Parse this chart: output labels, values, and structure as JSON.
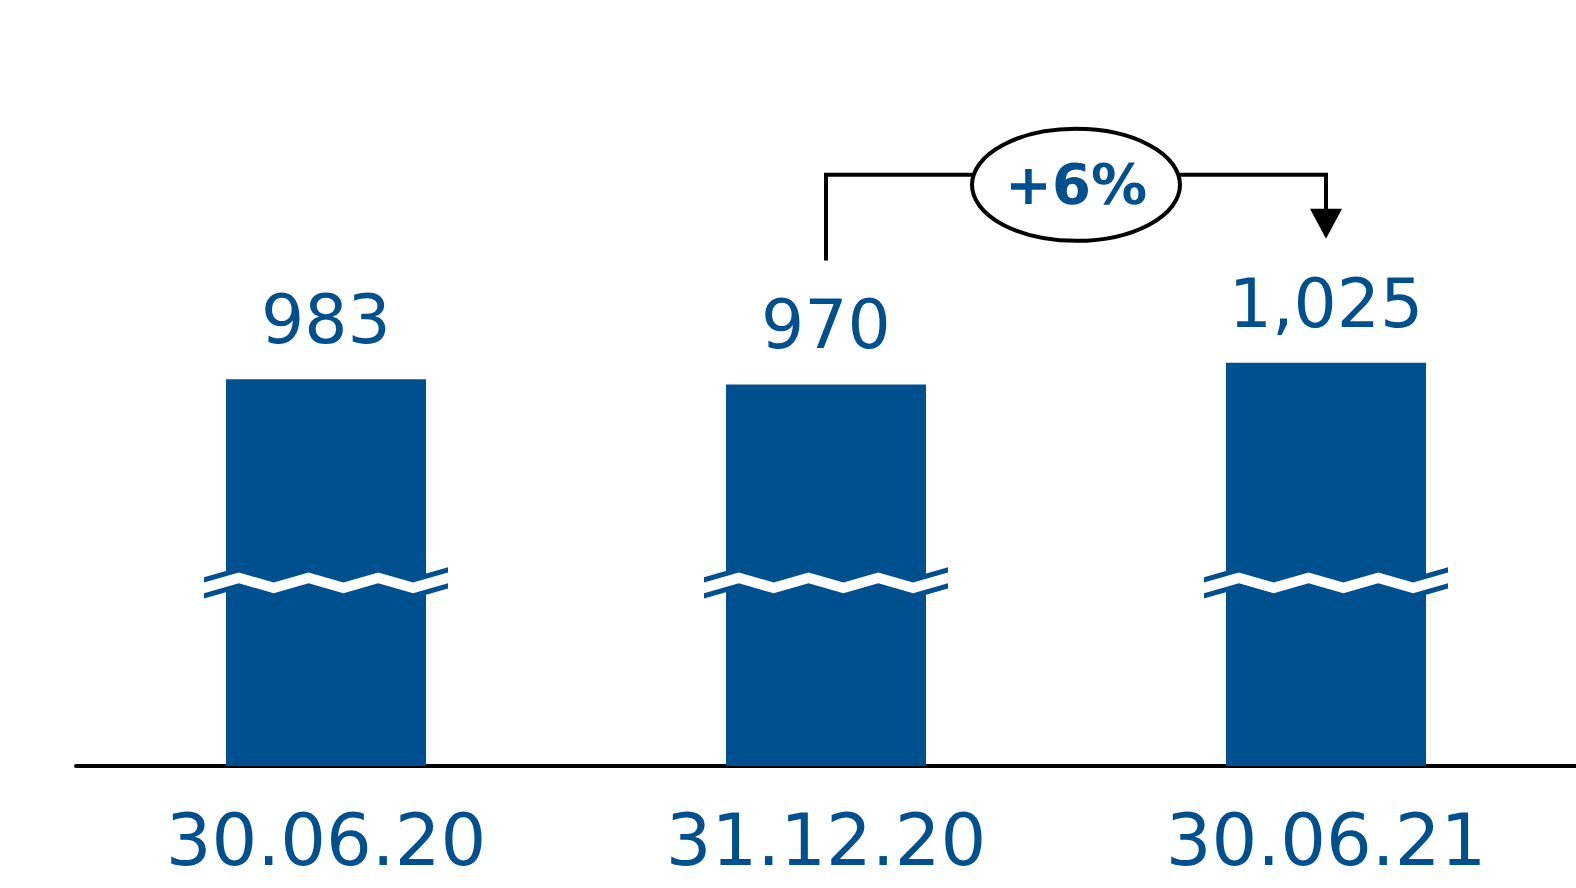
{
  "chart_data": {
    "type": "bar",
    "categories": [
      "30.06.20",
      "31.12.20",
      "30.06.21"
    ],
    "values": [
      983,
      970,
      1025
    ],
    "value_labels": [
      "983",
      "970",
      "1,025"
    ],
    "color": "#00508f",
    "annotations": [
      "+6%"
    ]
  }
}
